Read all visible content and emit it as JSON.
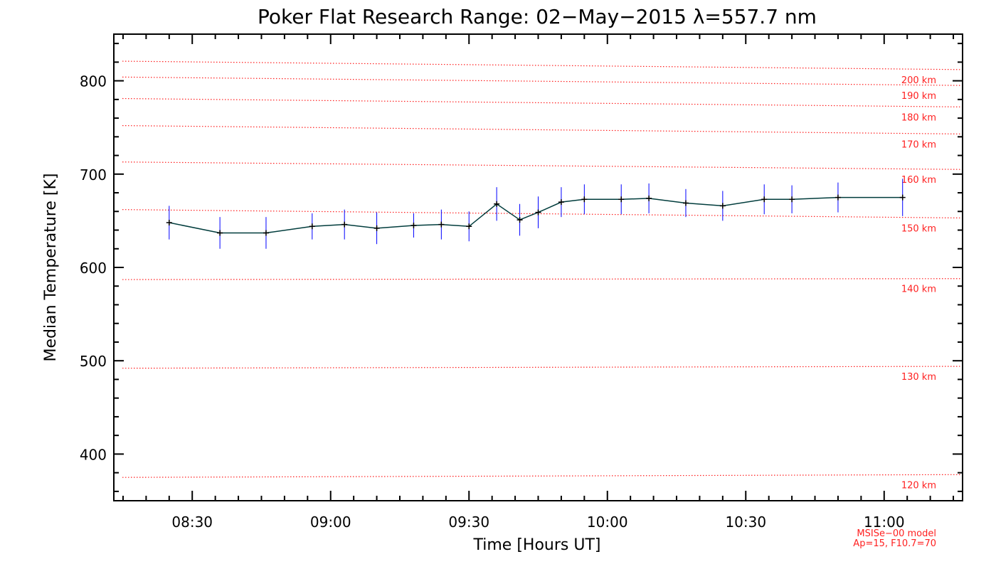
{
  "chart_data": {
    "type": "line",
    "title": "Poker Flat Research Range: 02−May−2015 λ=557.7 nm",
    "xlabel": "Time [Hours UT]",
    "ylabel": "Median Temperature [K]",
    "xlim": [
      "08:13",
      "11:17"
    ],
    "ylim": [
      350,
      850
    ],
    "x_ticks": [
      "08:30",
      "09:00",
      "09:30",
      "10:00",
      "10:30",
      "11:00"
    ],
    "y_ticks": [
      400,
      500,
      600,
      700,
      800
    ],
    "series": [
      {
        "color": "#003c3c",
        "errorbar_color": "#0000ff",
        "x": [
          "08:25",
          "08:36",
          "08:46",
          "08:56",
          "09:03",
          "09:10",
          "09:18",
          "09:24",
          "09:30",
          "09:36",
          "09:41",
          "09:45",
          "09:50",
          "09:55",
          "10:03",
          "10:09",
          "10:17",
          "10:25",
          "10:34",
          "10:40",
          "10:50",
          "11:04"
        ],
        "values": [
          648,
          637,
          637,
          644,
          646,
          642,
          645,
          646,
          644,
          668,
          651,
          659,
          670,
          673,
          673,
          674,
          669,
          666,
          673,
          673,
          675,
          675
        ],
        "errors": [
          18,
          17,
          17,
          14,
          16,
          17,
          13,
          16,
          16,
          18,
          17,
          17,
          16,
          16,
          16,
          16,
          15,
          16,
          16,
          15,
          16,
          20
        ]
      }
    ],
    "reference_model": {
      "color": "#ff2020",
      "note_line1": "MSISe−00 model",
      "note_line2": "Ap=15, F10.7=70",
      "altitudes": [
        {
          "label": "120 km",
          "start_value": 375,
          "end_value": 378
        },
        {
          "label": "130 km",
          "start_value": 492,
          "end_value": 494
        },
        {
          "label": "140 km",
          "start_value": 587,
          "end_value": 588
        },
        {
          "label": "150 km",
          "start_value": 662,
          "end_value": 653
        },
        {
          "label": "160 km",
          "start_value": 713,
          "end_value": 705
        },
        {
          "label": "170 km",
          "start_value": 752,
          "end_value": 743
        },
        {
          "label": "180 km",
          "start_value": 781,
          "end_value": 772
        },
        {
          "label": "190 km",
          "start_value": 804,
          "end_value": 795
        },
        {
          "label": "200 km",
          "start_value": 821,
          "end_value": 812
        }
      ]
    },
    "grid": false,
    "legend": "none"
  }
}
